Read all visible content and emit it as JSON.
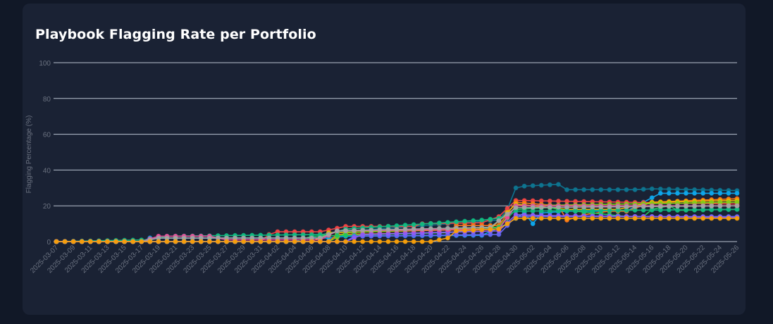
{
  "card": {
    "title": "Playbook Flagging Rate per Portfolio"
  },
  "colors": {
    "page_bg": "#111827",
    "card_bg": "#1a2234",
    "grid": "#cbd5e1",
    "tick_text": "#6b7280",
    "title_text": "#ffffff"
  },
  "chart_data": {
    "type": "line",
    "title": "Playbook Flagging Rate per Portfolio",
    "xlabel": "",
    "ylabel": "Flagging Percentage (%)",
    "ylim": [
      0,
      100
    ],
    "yticks": [
      0,
      20,
      40,
      60,
      80,
      100
    ],
    "grid": true,
    "legend": "none",
    "start_date": "2025-03-07",
    "end_date": "2025-05-26",
    "xtick_labels": [
      "2025-03-07",
      "2025-03-09",
      "2025-03-11",
      "2025-03-13",
      "2025-03-15",
      "2025-03-17",
      "2025-03-19",
      "2025-03-21",
      "2025-03-23",
      "2025-03-25",
      "2025-03-27",
      "2025-03-29",
      "2025-03-31",
      "2025-04-02",
      "2025-04-04",
      "2025-04-06",
      "2025-04-08",
      "2025-04-10",
      "2025-04-12",
      "2025-04-14",
      "2025-04-16",
      "2025-04-18",
      "2025-04-20",
      "2025-04-22",
      "2025-04-24",
      "2025-04-26",
      "2025-04-28",
      "2025-04-30",
      "2025-05-02",
      "2025-05-04",
      "2025-05-06",
      "2025-05-08",
      "2025-05-10",
      "2025-05-12",
      "2025-05-14",
      "2025-05-16",
      "2025-05-18",
      "2025-05-20",
      "2025-05-22",
      "2025-05-24",
      "2025-05-26"
    ],
    "series": [
      {
        "color": "#0e7490",
        "points": [
          [
            "2025-03-07",
            0
          ],
          [
            "2025-03-17",
            0
          ],
          [
            "2025-03-18",
            2
          ],
          [
            "2025-04-06",
            2
          ],
          [
            "2025-04-08",
            5
          ],
          [
            "2025-04-28",
            12
          ],
          [
            "2025-04-29",
            18
          ],
          [
            "2025-04-30",
            30
          ],
          [
            "2025-05-01",
            31
          ],
          [
            "2025-05-05",
            32
          ],
          [
            "2025-05-06",
            29
          ],
          [
            "2025-05-14",
            29
          ],
          [
            "2025-05-16",
            29.5
          ],
          [
            "2025-05-26",
            28.5
          ]
        ]
      },
      {
        "color": "#0ea5e9",
        "points": [
          [
            "2025-03-07",
            0
          ],
          [
            "2025-03-17",
            0
          ],
          [
            "2025-03-18",
            2
          ],
          [
            "2025-04-08",
            2
          ],
          [
            "2025-04-10",
            3
          ],
          [
            "2025-04-26",
            3.5
          ],
          [
            "2025-04-29",
            10
          ],
          [
            "2025-05-01",
            16
          ],
          [
            "2025-05-02",
            10
          ],
          [
            "2025-05-03",
            16
          ],
          [
            "2025-05-06",
            17
          ],
          [
            "2025-05-13",
            17
          ],
          [
            "2025-05-15",
            22
          ],
          [
            "2025-05-17",
            27
          ],
          [
            "2025-05-26",
            27
          ]
        ]
      },
      {
        "color": "#ef4444",
        "points": [
          [
            "2025-03-07",
            0
          ],
          [
            "2025-03-31",
            0
          ],
          [
            "2025-04-01",
            4
          ],
          [
            "2025-04-02",
            5.5
          ],
          [
            "2025-04-07",
            5.5
          ],
          [
            "2025-04-10",
            8.5
          ],
          [
            "2025-04-18",
            8.5
          ],
          [
            "2025-04-19",
            10
          ],
          [
            "2025-04-26",
            10.5
          ],
          [
            "2025-04-28",
            14
          ],
          [
            "2025-04-30",
            23
          ],
          [
            "2025-05-26",
            21
          ]
        ]
      },
      {
        "color": "#f97316",
        "points": [
          [
            "2025-03-07",
            0
          ],
          [
            "2025-04-08",
            0
          ],
          [
            "2025-04-09",
            4
          ],
          [
            "2025-04-22",
            5
          ],
          [
            "2025-04-23",
            9
          ],
          [
            "2025-04-28",
            9
          ],
          [
            "2025-04-30",
            22
          ],
          [
            "2025-05-05",
            20
          ],
          [
            "2025-05-06",
            12
          ],
          [
            "2025-05-08",
            15
          ],
          [
            "2025-05-11",
            17
          ],
          [
            "2025-05-13",
            17
          ],
          [
            "2025-05-16",
            22
          ],
          [
            "2025-05-26",
            24
          ]
        ]
      },
      {
        "color": "#eab308",
        "points": [
          [
            "2025-03-07",
            0
          ],
          [
            "2025-04-06",
            0
          ],
          [
            "2025-04-08",
            5
          ],
          [
            "2025-04-27",
            7
          ],
          [
            "2025-04-30",
            21
          ],
          [
            "2025-05-06",
            18
          ],
          [
            "2025-05-12",
            18
          ],
          [
            "2025-05-16",
            22
          ],
          [
            "2025-05-26",
            23
          ]
        ]
      },
      {
        "color": "#84cc16",
        "points": [
          [
            "2025-03-07",
            0
          ],
          [
            "2025-04-08",
            0
          ],
          [
            "2025-04-10",
            5
          ],
          [
            "2025-04-28",
            8
          ],
          [
            "2025-04-30",
            20
          ],
          [
            "2025-05-26",
            22
          ]
        ]
      },
      {
        "color": "#22c55e",
        "points": [
          [
            "2025-03-07",
            0
          ],
          [
            "2025-04-04",
            0
          ],
          [
            "2025-04-06",
            3
          ],
          [
            "2025-04-22",
            5
          ],
          [
            "2025-04-28",
            8
          ],
          [
            "2025-04-30",
            18
          ],
          [
            "2025-05-04",
            19
          ],
          [
            "2025-05-05",
            18
          ],
          [
            "2025-05-13",
            14
          ],
          [
            "2025-05-15",
            14
          ],
          [
            "2025-05-16",
            18
          ],
          [
            "2025-05-18",
            20
          ],
          [
            "2025-05-19",
            17.5
          ],
          [
            "2025-05-26",
            18
          ]
        ]
      },
      {
        "color": "#10b981",
        "points": [
          [
            "2025-03-07",
            0
          ],
          [
            "2025-03-18",
            1
          ],
          [
            "2025-03-20",
            3
          ],
          [
            "2025-04-08",
            4
          ],
          [
            "2025-04-10",
            7
          ],
          [
            "2025-04-26",
            12
          ],
          [
            "2025-04-28",
            13
          ],
          [
            "2025-04-30",
            17
          ],
          [
            "2025-05-26",
            18
          ]
        ]
      },
      {
        "color": "#6366f1",
        "points": [
          [
            "2025-03-07",
            0
          ],
          [
            "2025-04-10",
            0
          ],
          [
            "2025-04-11",
            3
          ],
          [
            "2025-04-28",
            4
          ],
          [
            "2025-04-30",
            14
          ],
          [
            "2025-05-26",
            14
          ]
        ]
      },
      {
        "color": "#8b5cf6",
        "points": [
          [
            "2025-03-07",
            0
          ],
          [
            "2025-04-10",
            0
          ],
          [
            "2025-04-12",
            4
          ],
          [
            "2025-04-28",
            6
          ],
          [
            "2025-04-30",
            15
          ],
          [
            "2025-05-04",
            14.5
          ],
          [
            "2025-05-26",
            13.5
          ]
        ]
      },
      {
        "color": "#ec4899",
        "points": [
          [
            "2025-03-07",
            0
          ],
          [
            "2025-03-17",
            0
          ],
          [
            "2025-03-19",
            3
          ],
          [
            "2025-03-25",
            3
          ],
          [
            "2025-03-27",
            1
          ],
          [
            "2025-04-07",
            1
          ],
          [
            "2025-04-09",
            6
          ],
          [
            "2025-04-28",
            7
          ],
          [
            "2025-04-30",
            20
          ],
          [
            "2025-05-26",
            20
          ]
        ]
      },
      {
        "color": "#a3a3a3",
        "points": [
          [
            "2025-03-07",
            0
          ],
          [
            "2025-03-17",
            0
          ],
          [
            "2025-03-19",
            2
          ],
          [
            "2025-04-07",
            2
          ],
          [
            "2025-04-09",
            6
          ],
          [
            "2025-04-27",
            8
          ],
          [
            "2025-04-30",
            19
          ],
          [
            "2025-05-26",
            20
          ]
        ]
      },
      {
        "color": "#f59e0b",
        "points": [
          [
            "2025-03-07",
            0
          ],
          [
            "2025-04-20",
            0
          ],
          [
            "2025-04-22",
            2
          ],
          [
            "2025-04-23",
            6
          ],
          [
            "2025-04-28",
            7
          ],
          [
            "2025-04-30",
            13
          ],
          [
            "2025-05-26",
            13
          ]
        ]
      }
    ]
  }
}
